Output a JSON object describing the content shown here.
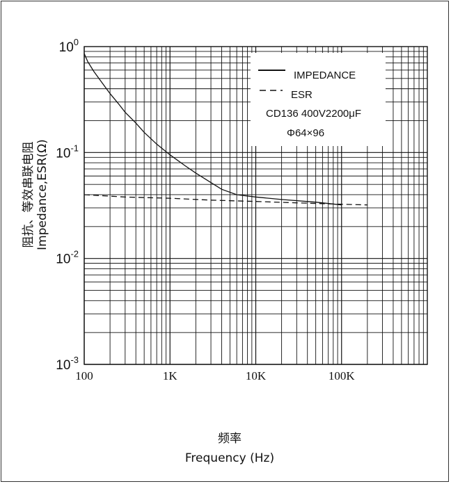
{
  "chart_data": {
    "type": "line",
    "title": "",
    "xlabel_cn": "频率",
    "xlabel": "Frequency (Hz)",
    "ylabel_cn": "阻抗、等效串联电阻",
    "ylabel": "Impedance,ESR(Ω)",
    "x_scale": "log",
    "y_scale": "log",
    "xlim": [
      100,
      1000000
    ],
    "ylim": [
      0.001,
      1
    ],
    "x_ticks": [
      {
        "value": 100,
        "label": "100"
      },
      {
        "value": 1000,
        "label": "1K"
      },
      {
        "value": 10000,
        "label": "10K"
      },
      {
        "value": 100000,
        "label": "100K"
      }
    ],
    "y_ticks": [
      {
        "value": 1,
        "base": "10",
        "exp": "0"
      },
      {
        "value": 0.1,
        "base": "10",
        "exp": "-1"
      },
      {
        "value": 0.01,
        "base": "10",
        "exp": "-2"
      },
      {
        "value": 0.001,
        "base": "10",
        "exp": "-3"
      }
    ],
    "grid": true,
    "legend_position": "top-right",
    "legend_note_1": "CD136 400V2200μF",
    "legend_note_2": "Φ64×96",
    "series": [
      {
        "name": "IMPEDANCE",
        "style": "solid",
        "x": [
          100,
          110,
          130,
          160,
          200,
          250,
          300,
          400,
          500,
          700,
          1000,
          1500,
          2000,
          3000,
          4000,
          6000,
          10000,
          20000,
          50000,
          100000
        ],
        "y": [
          0.86,
          0.72,
          0.58,
          0.46,
          0.36,
          0.29,
          0.24,
          0.19,
          0.155,
          0.12,
          0.095,
          0.075,
          0.064,
          0.052,
          0.045,
          0.04,
          0.038,
          0.036,
          0.034,
          0.032
        ]
      },
      {
        "name": "ESR",
        "style": "dashed",
        "x": [
          100,
          300,
          1000,
          3000,
          10000,
          30000,
          100000,
          200000
        ],
        "y": [
          0.04,
          0.038,
          0.037,
          0.0355,
          0.0345,
          0.0335,
          0.0325,
          0.032
        ]
      }
    ]
  }
}
